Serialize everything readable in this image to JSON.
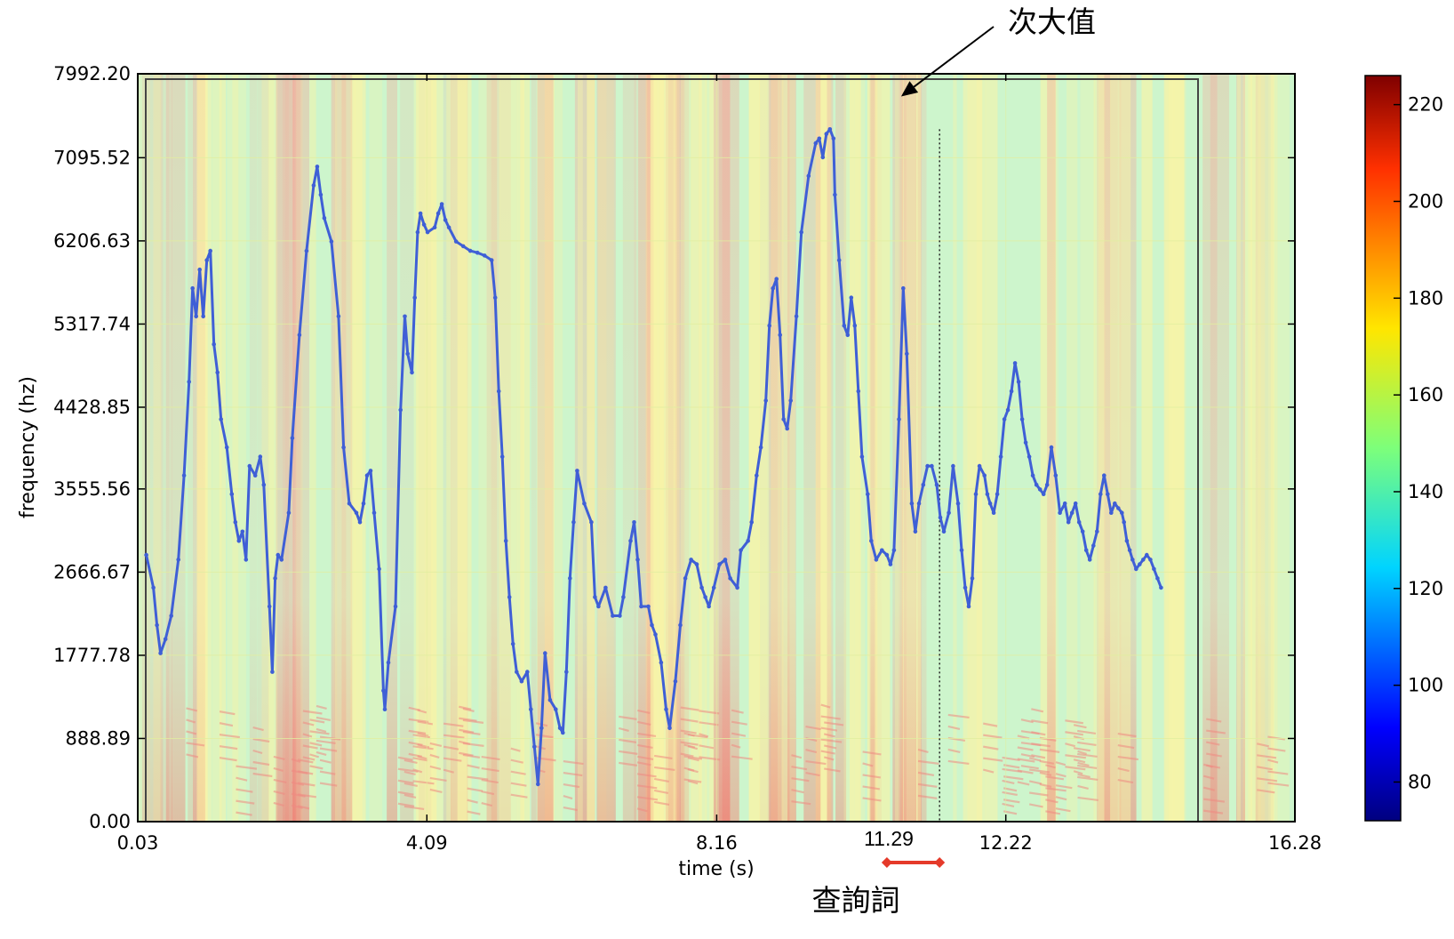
{
  "chart_data": {
    "type": "line",
    "xlabel": "time (s)",
    "ylabel": "frequency (hz)",
    "xlim": [
      0.03,
      16.28
    ],
    "ylim": [
      0.0,
      7992.2
    ],
    "x_ticks": [
      "0.03",
      "4.09",
      "8.16",
      "12.22",
      "16.28"
    ],
    "y_ticks": [
      "0.00",
      "888.89",
      "1777.78",
      "2666.67",
      "3555.56",
      "4428.85",
      "5317.74",
      "6206.63",
      "7095.52",
      "7992.20"
    ],
    "grid": true,
    "background": "spectrogram",
    "colorbar": {
      "ticks": [
        "80",
        "100",
        "120",
        "140",
        "160",
        "180",
        "200",
        "220"
      ],
      "range": [
        72,
        226
      ]
    },
    "series": [
      {
        "color": "#3f5fd6",
        "points": [
          [
            0.15,
            2850
          ],
          [
            0.25,
            2500
          ],
          [
            0.3,
            2100
          ],
          [
            0.35,
            1800
          ],
          [
            0.42,
            1950
          ],
          [
            0.5,
            2200
          ],
          [
            0.6,
            2800
          ],
          [
            0.68,
            3700
          ],
          [
            0.75,
            4700
          ],
          [
            0.8,
            5700
          ],
          [
            0.85,
            5400
          ],
          [
            0.9,
            5900
          ],
          [
            0.95,
            5400
          ],
          [
            1.0,
            6000
          ],
          [
            1.05,
            6100
          ],
          [
            1.1,
            5100
          ],
          [
            1.15,
            4800
          ],
          [
            1.2,
            4300
          ],
          [
            1.28,
            4000
          ],
          [
            1.35,
            3500
          ],
          [
            1.4,
            3200
          ],
          [
            1.45,
            3000
          ],
          [
            1.5,
            3100
          ],
          [
            1.55,
            2800
          ],
          [
            1.6,
            3800
          ],
          [
            1.68,
            3700
          ],
          [
            1.75,
            3900
          ],
          [
            1.8,
            3600
          ],
          [
            1.88,
            2300
          ],
          [
            1.92,
            1600
          ],
          [
            1.96,
            2600
          ],
          [
            2.0,
            2850
          ],
          [
            2.05,
            2800
          ],
          [
            2.15,
            3300
          ],
          [
            2.2,
            4100
          ],
          [
            2.3,
            5200
          ],
          [
            2.4,
            6100
          ],
          [
            2.5,
            6800
          ],
          [
            2.55,
            7000
          ],
          [
            2.6,
            6700
          ],
          [
            2.65,
            6450
          ],
          [
            2.75,
            6200
          ],
          [
            2.85,
            5400
          ],
          [
            2.92,
            4000
          ],
          [
            3.0,
            3400
          ],
          [
            3.1,
            3300
          ],
          [
            3.15,
            3200
          ],
          [
            3.2,
            3400
          ],
          [
            3.25,
            3700
          ],
          [
            3.3,
            3750
          ],
          [
            3.35,
            3300
          ],
          [
            3.42,
            2700
          ],
          [
            3.48,
            1400
          ],
          [
            3.5,
            1200
          ],
          [
            3.55,
            1700
          ],
          [
            3.65,
            2300
          ],
          [
            3.72,
            4400
          ],
          [
            3.78,
            5400
          ],
          [
            3.82,
            5000
          ],
          [
            3.88,
            4800
          ],
          [
            3.92,
            5600
          ],
          [
            3.96,
            6300
          ],
          [
            4.0,
            6500
          ],
          [
            4.05,
            6380
          ],
          [
            4.1,
            6300
          ],
          [
            4.2,
            6350
          ],
          [
            4.25,
            6500
          ],
          [
            4.3,
            6600
          ],
          [
            4.35,
            6430
          ],
          [
            4.4,
            6350
          ],
          [
            4.5,
            6200
          ],
          [
            4.6,
            6150
          ],
          [
            4.7,
            6100
          ],
          [
            4.8,
            6080
          ],
          [
            4.9,
            6050
          ],
          [
            5.0,
            6000
          ],
          [
            5.05,
            5600
          ],
          [
            5.1,
            4600
          ],
          [
            5.15,
            3900
          ],
          [
            5.2,
            3000
          ],
          [
            5.25,
            2400
          ],
          [
            5.3,
            1900
          ],
          [
            5.35,
            1600
          ],
          [
            5.42,
            1500
          ],
          [
            5.5,
            1600
          ],
          [
            5.55,
            1200
          ],
          [
            5.6,
            800
          ],
          [
            5.65,
            400
          ],
          [
            5.7,
            1000
          ],
          [
            5.75,
            1800
          ],
          [
            5.82,
            1300
          ],
          [
            5.9,
            1200
          ],
          [
            5.96,
            1000
          ],
          [
            6.0,
            950
          ],
          [
            6.05,
            1600
          ],
          [
            6.1,
            2600
          ],
          [
            6.15,
            3200
          ],
          [
            6.2,
            3750
          ],
          [
            6.3,
            3400
          ],
          [
            6.4,
            3200
          ],
          [
            6.45,
            2400
          ],
          [
            6.5,
            2300
          ],
          [
            6.6,
            2500
          ],
          [
            6.7,
            2200
          ],
          [
            6.8,
            2200
          ],
          [
            6.85,
            2400
          ],
          [
            6.95,
            3000
          ],
          [
            7.0,
            3200
          ],
          [
            7.05,
            2800
          ],
          [
            7.1,
            2300
          ],
          [
            7.2,
            2300
          ],
          [
            7.25,
            2100
          ],
          [
            7.3,
            2000
          ],
          [
            7.38,
            1700
          ],
          [
            7.45,
            1200
          ],
          [
            7.5,
            1000
          ],
          [
            7.58,
            1500
          ],
          [
            7.65,
            2100
          ],
          [
            7.72,
            2600
          ],
          [
            7.8,
            2800
          ],
          [
            7.88,
            2750
          ],
          [
            7.95,
            2500
          ],
          [
            8.0,
            2400
          ],
          [
            8.05,
            2300
          ],
          [
            8.12,
            2500
          ],
          [
            8.2,
            2750
          ],
          [
            8.28,
            2800
          ],
          [
            8.35,
            2600
          ],
          [
            8.45,
            2500
          ],
          [
            8.5,
            2900
          ],
          [
            8.6,
            3000
          ],
          [
            8.65,
            3200
          ],
          [
            8.72,
            3700
          ],
          [
            8.78,
            4000
          ],
          [
            8.85,
            4500
          ],
          [
            8.9,
            5300
          ],
          [
            8.95,
            5700
          ],
          [
            9.0,
            5800
          ],
          [
            9.05,
            5200
          ],
          [
            9.1,
            4300
          ],
          [
            9.15,
            4200
          ],
          [
            9.2,
            4500
          ],
          [
            9.28,
            5400
          ],
          [
            9.35,
            6300
          ],
          [
            9.45,
            6900
          ],
          [
            9.55,
            7250
          ],
          [
            9.6,
            7300
          ],
          [
            9.65,
            7100
          ],
          [
            9.7,
            7350
          ],
          [
            9.75,
            7400
          ],
          [
            9.8,
            7300
          ],
          [
            9.82,
            6700
          ],
          [
            9.88,
            6000
          ],
          [
            9.95,
            5300
          ],
          [
            10.0,
            5200
          ],
          [
            10.05,
            5600
          ],
          [
            10.1,
            5300
          ],
          [
            10.15,
            4600
          ],
          [
            10.2,
            3900
          ],
          [
            10.28,
            3500
          ],
          [
            10.33,
            3000
          ],
          [
            10.4,
            2800
          ],
          [
            10.48,
            2900
          ],
          [
            10.55,
            2850
          ],
          [
            10.6,
            2750
          ],
          [
            10.65,
            2900
          ],
          [
            10.72,
            4300
          ],
          [
            10.78,
            5700
          ],
          [
            10.83,
            5000
          ],
          [
            10.9,
            3400
          ],
          [
            10.95,
            3100
          ],
          [
            11.0,
            3400
          ],
          [
            11.06,
            3600
          ],
          [
            11.12,
            3800
          ],
          [
            11.18,
            3800
          ],
          [
            11.25,
            3600
          ],
          [
            11.3,
            3250
          ],
          [
            11.35,
            3100
          ],
          [
            11.42,
            3300
          ],
          [
            11.48,
            3800
          ],
          [
            11.55,
            3400
          ],
          [
            11.6,
            2900
          ],
          [
            11.65,
            2500
          ],
          [
            11.7,
            2300
          ],
          [
            11.75,
            2600
          ],
          [
            11.8,
            3500
          ],
          [
            11.85,
            3800
          ],
          [
            11.92,
            3700
          ],
          [
            11.96,
            3500
          ],
          [
            12.0,
            3400
          ],
          [
            12.05,
            3300
          ],
          [
            12.1,
            3500
          ],
          [
            12.15,
            3900
          ],
          [
            12.2,
            4300
          ],
          [
            12.25,
            4400
          ],
          [
            12.3,
            4600
          ],
          [
            12.35,
            4900
          ],
          [
            12.4,
            4700
          ],
          [
            12.45,
            4300
          ],
          [
            12.5,
            4050
          ],
          [
            12.55,
            3900
          ],
          [
            12.6,
            3700
          ],
          [
            12.65,
            3600
          ],
          [
            12.7,
            3550
          ],
          [
            12.75,
            3500
          ],
          [
            12.8,
            3600
          ],
          [
            12.86,
            4000
          ],
          [
            12.92,
            3700
          ],
          [
            12.98,
            3300
          ],
          [
            13.05,
            3400
          ],
          [
            13.1,
            3200
          ],
          [
            13.15,
            3300
          ],
          [
            13.2,
            3400
          ],
          [
            13.25,
            3200
          ],
          [
            13.3,
            3100
          ],
          [
            13.35,
            2900
          ],
          [
            13.4,
            2800
          ],
          [
            13.45,
            2950
          ],
          [
            13.5,
            3100
          ],
          [
            13.55,
            3500
          ],
          [
            13.6,
            3700
          ],
          [
            13.65,
            3500
          ],
          [
            13.7,
            3300
          ],
          [
            13.75,
            3400
          ],
          [
            13.8,
            3350
          ],
          [
            13.85,
            3300
          ],
          [
            13.88,
            3200
          ],
          [
            13.92,
            3000
          ],
          [
            13.96,
            2900
          ],
          [
            14.0,
            2800
          ],
          [
            14.05,
            2700
          ],
          [
            14.1,
            2750
          ],
          [
            14.15,
            2800
          ],
          [
            14.2,
            2850
          ],
          [
            14.25,
            2800
          ],
          [
            14.3,
            2700
          ],
          [
            14.35,
            2600
          ],
          [
            14.4,
            2500
          ]
        ]
      }
    ],
    "annotations": [
      {
        "text": "次大值",
        "target": [
          10.75,
          7750
        ]
      },
      {
        "text": "11.29"
      },
      {
        "text": "查詢詞",
        "range": [
          10.55,
          11.29
        ]
      }
    ]
  }
}
